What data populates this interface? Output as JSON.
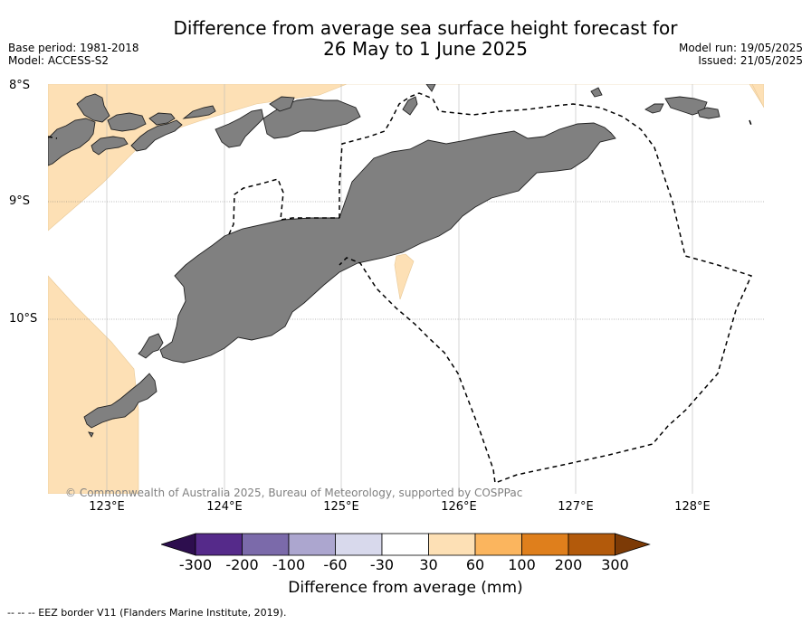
{
  "header": {
    "title_line1": "Difference from average sea surface height forecast for",
    "title_line2": "26 May to 1 June 2025",
    "base_period": "Base period: 1981-2018",
    "model": "Model: ACCESS-S2",
    "model_run": "Model run: 19/05/2025",
    "issued": "Issued: 21/05/2025"
  },
  "map": {
    "lat_labels": [
      "8°S",
      "9°S",
      "10°S"
    ],
    "lon_labels": [
      "123°E",
      "124°E",
      "125°E",
      "126°E",
      "127°E",
      "128°E"
    ],
    "copyright": "© Commonwealth of Australia 2025, Bureau of Meteorology, supported by COSPPac",
    "colors": {
      "land": "#808080",
      "anomaly_30_60": "#fde0b5",
      "ocean": "#ffffff"
    }
  },
  "legend": {
    "ticks": [
      "-300",
      "-200",
      "-100",
      "-60",
      "-30",
      "30",
      "60",
      "100",
      "200",
      "300"
    ],
    "colors": [
      "#2d0e4e",
      "#552a8a",
      "#7b6aaa",
      "#aca6cf",
      "#d8d9ec",
      "#ffffff",
      "#fde0b5",
      "#fbb55e",
      "#df7f1c",
      "#b35a0b",
      "#7c3a06"
    ],
    "title": "Difference from average (mm)"
  },
  "footer": {
    "eez_note": "--  --  -- EEZ border V11 (Flanders Marine Institute, 2019)."
  }
}
